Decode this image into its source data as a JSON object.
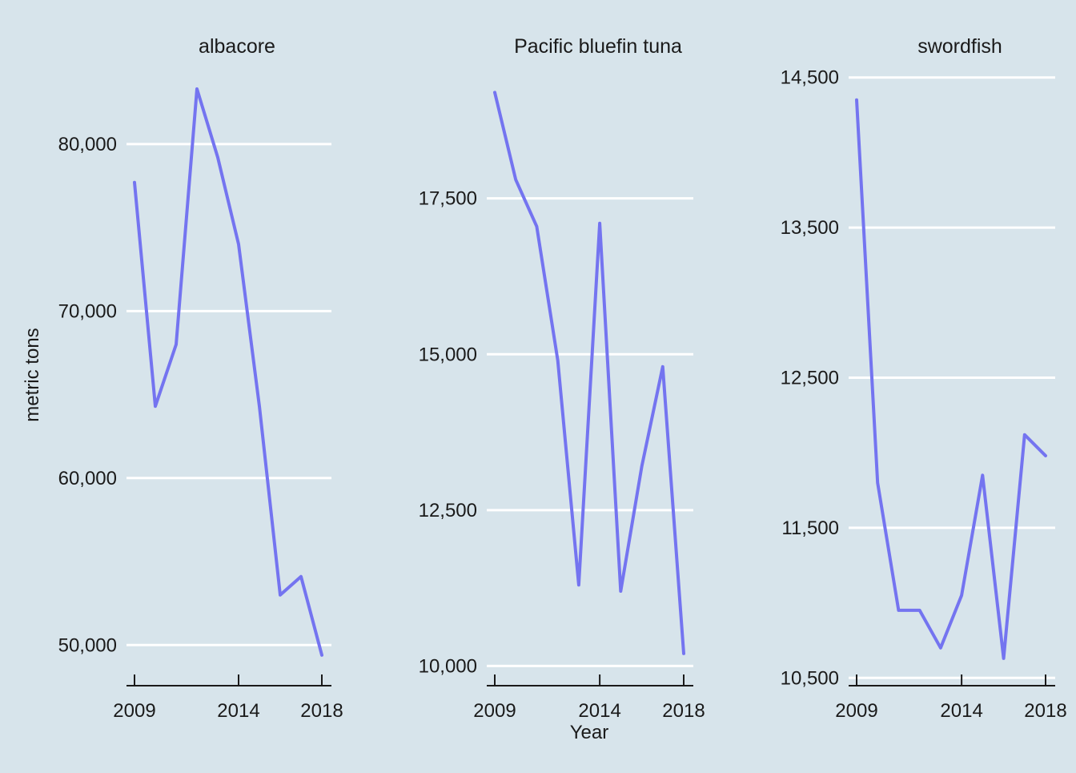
{
  "chart_data": {
    "type": "line",
    "xlabel": "Year",
    "ylabel": "metric tons",
    "line_color": "#7474f0",
    "background_color": "#d7e4eb",
    "grid": "horizontal-major",
    "x": [
      2009,
      2010,
      2011,
      2012,
      2013,
      2014,
      2015,
      2016,
      2017,
      2018
    ],
    "x_tick_labels": [
      "2009",
      "2014",
      "2018"
    ],
    "panels": [
      {
        "title": "albacore",
        "values": [
          77700,
          64300,
          68000,
          83300,
          79200,
          74000,
          64300,
          53000,
          54100,
          49400
        ],
        "ylim": [
          48000,
          84500
        ],
        "y_ticks": [
          50000,
          60000,
          70000,
          80000
        ],
        "y_tick_labels": [
          "50,000",
          "60,000",
          "70,000",
          "80,000"
        ]
      },
      {
        "title": "Pacific bluefin tuna",
        "values": [
          19200,
          17800,
          17050,
          14900,
          11300,
          17100,
          11200,
          13200,
          14800,
          10200
        ],
        "ylim": [
          9800,
          19500
        ],
        "y_ticks": [
          10000,
          12500,
          15000,
          17500
        ],
        "y_tick_labels": [
          "10,000",
          "12,500",
          "15,000",
          "17,500"
        ]
      },
      {
        "title": "swordfish",
        "values": [
          14350,
          11800,
          10950,
          10950,
          10700,
          11050,
          11850,
          10630,
          12120,
          11980
        ],
        "ylim": [
          10480,
          14600
        ],
        "y_ticks": [
          10500,
          11500,
          12500,
          13500,
          14500
        ],
        "y_tick_labels": [
          "10,500",
          "11,500",
          "12,500",
          "13,500",
          "14,500"
        ]
      }
    ]
  }
}
